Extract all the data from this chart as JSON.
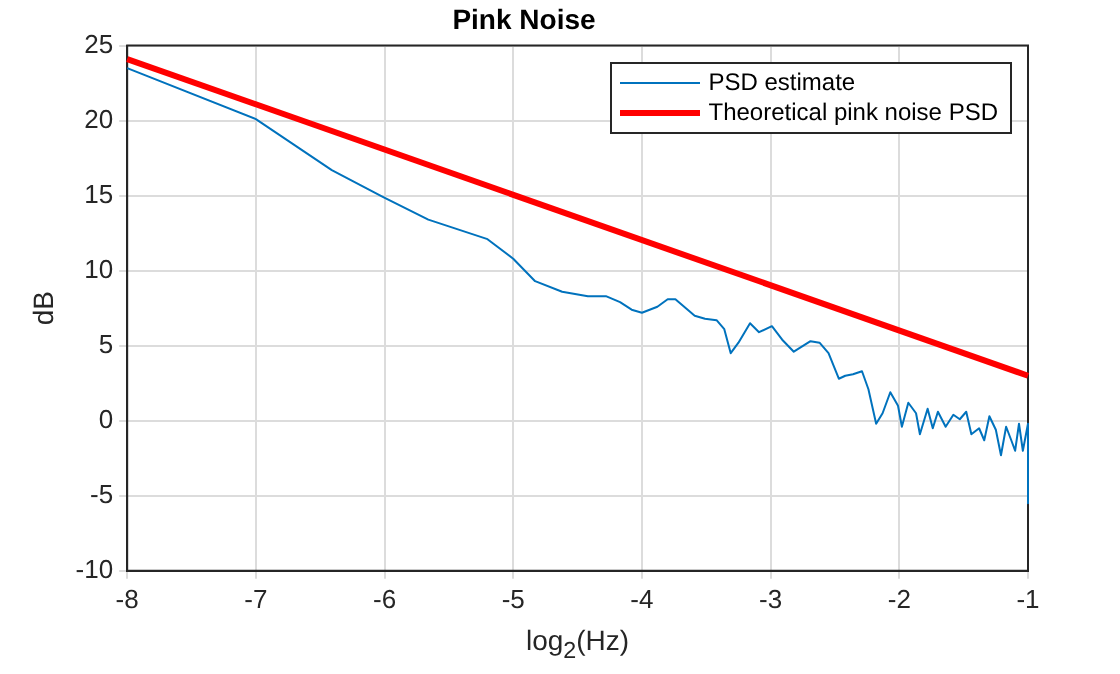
{
  "chart_data": {
    "type": "line",
    "title": "Pink Noise",
    "xlabel": "log$_{2}$(Hz)",
    "ylabel": "dB",
    "xlim": [
      -8,
      -1
    ],
    "xticks": [
      -8,
      -7,
      -6,
      -5,
      -4,
      -3,
      -2,
      -1
    ],
    "ylim": [
      -10,
      25
    ],
    "yticks": [
      -10,
      -5,
      0,
      5,
      10,
      15,
      20,
      25
    ],
    "grid": true,
    "legend": "top right",
    "marker": "none",
    "series": [
      {
        "name": "PSD estimate",
        "color": "#0072bd",
        "x": [
          -8,
          -7,
          -6.41,
          -6.01,
          -5.66,
          -5.2,
          -5.0,
          -4.83,
          -4.62,
          -4.42,
          -4.28,
          -4.17,
          -4.08,
          -4.0,
          -3.88,
          -3.8,
          -3.74,
          -3.59,
          -3.51,
          -3.42,
          -3.36,
          -3.31,
          -3.25,
          -3.16,
          -3.09,
          -2.99,
          -2.91,
          -2.82,
          -2.69,
          -2.62,
          -2.55,
          -2.47,
          -2.42,
          -2.36,
          -2.29,
          -2.24,
          -2.18,
          -2.13,
          -2.07,
          -2.01,
          -1.98,
          -1.93,
          -1.87,
          -1.84,
          -1.78,
          -1.74,
          -1.7,
          -1.64,
          -1.58,
          -1.53,
          -1.48,
          -1.44,
          -1.38,
          -1.34,
          -1.3,
          -1.25,
          -1.21,
          -1.17,
          -1.13,
          -1.1,
          -1.07,
          -1.04,
          -1.0,
          -1.0
        ],
        "values": [
          23.5,
          20.1,
          16.7,
          14.9,
          13.4,
          12.1,
          10.8,
          9.3,
          8.6,
          8.3,
          8.3,
          7.9,
          7.4,
          7.2,
          7.6,
          8.1,
          8.1,
          7.0,
          6.8,
          6.7,
          6.1,
          4.5,
          5.2,
          6.5,
          5.9,
          6.3,
          5.4,
          4.6,
          5.3,
          5.2,
          4.5,
          2.8,
          3.0,
          3.1,
          3.3,
          2.1,
          -0.2,
          0.5,
          1.9,
          1.0,
          -0.4,
          1.2,
          0.5,
          -0.9,
          0.8,
          -0.5,
          0.6,
          -0.4,
          0.4,
          0.1,
          0.6,
          -0.9,
          -0.5,
          -1.3,
          0.3,
          -0.6,
          -2.3,
          -0.4,
          -1.3,
          -2.0,
          -0.2,
          -2.0,
          -0.2,
          -5.5
        ]
      },
      {
        "name": "Theoretical pink noise PSD",
        "color": "#ff0000",
        "x": [
          -8,
          -1
        ],
        "values": [
          24.1,
          3.0
        ]
      }
    ]
  }
}
